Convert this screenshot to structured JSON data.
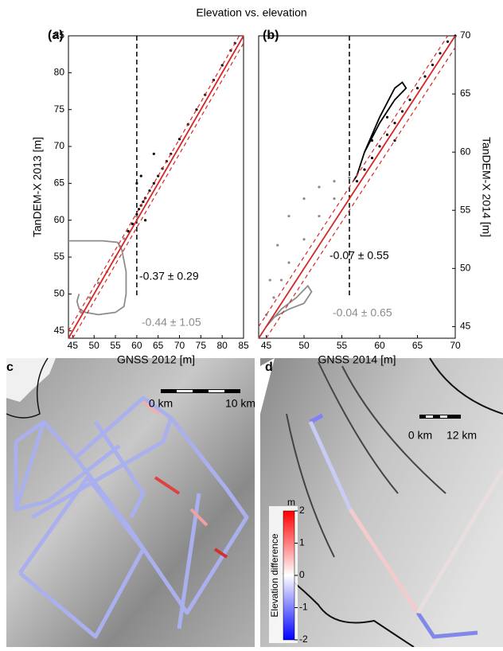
{
  "title": "Elevation vs. elevation",
  "chart_data": [
    {
      "type": "scatter",
      "panel": "(a)",
      "x_label": "GNSS 2012 [m]",
      "y_label": "TanDEM-X 2013 [m]",
      "yaxis_side": "left",
      "xlim": [
        44,
        85
      ],
      "ylim": [
        44,
        85
      ],
      "xticks": [
        45,
        50,
        55,
        60,
        65,
        70,
        75,
        80,
        85
      ],
      "yticks": [
        45,
        50,
        55,
        60,
        65,
        70,
        75,
        80,
        85
      ],
      "vline": 60,
      "annotations": [
        "-0.37 ± 0.29",
        "-0.44 ± 1.05"
      ],
      "series": [
        {
          "style": "points",
          "color": "#8c8c8c",
          "x": [
            47,
            49,
            51,
            53,
            55,
            56,
            57,
            58,
            59,
            60
          ],
          "values": [
            47.5,
            49.5,
            51.5,
            53,
            55,
            56.5,
            57.5,
            58.5,
            59.5,
            60.5
          ]
        },
        {
          "style": "line",
          "color": "#8c8c8c",
          "x": [
            44,
            52,
            55.5,
            56.5,
            57.5,
            57.5,
            57,
            55,
            51,
            48,
            46.5,
            46,
            46.5
          ],
          "values": [
            57.2,
            57.2,
            57,
            56,
            53,
            50,
            48.3,
            47.5,
            47.2,
            47.5,
            48,
            49,
            50
          ]
        },
        {
          "style": "points",
          "color": "#000000",
          "x": [
            58,
            59,
            60,
            60.5,
            61,
            61.5,
            62,
            63,
            64,
            65,
            66,
            67,
            68,
            70,
            72,
            74,
            76,
            78,
            80,
            82,
            83,
            60,
            61,
            62,
            64
          ],
          "values": [
            58.5,
            59.5,
            60.8,
            61.5,
            62,
            62.5,
            63,
            64,
            65,
            66,
            67,
            68,
            69,
            71,
            73,
            75,
            77,
            79,
            81,
            83,
            84,
            65,
            66,
            60,
            69
          ]
        },
        {
          "style": "line",
          "color": "#d62728",
          "x": [
            44,
            85
          ],
          "values": [
            44,
            85
          ]
        },
        {
          "style": "dashed",
          "color": "#d62728",
          "x": [
            44,
            84
          ],
          "values": [
            45,
            85
          ]
        },
        {
          "style": "dashed",
          "color": "#d62728",
          "x": [
            45,
            85
          ],
          "values": [
            44,
            84
          ]
        }
      ]
    },
    {
      "type": "scatter",
      "panel": "(b)",
      "x_label": "GNSS 2014 [m]",
      "y_label": "TanDEM-X 2014 [m]",
      "yaxis_side": "right",
      "xlim": [
        44,
        70
      ],
      "ylim": [
        44,
        70
      ],
      "xticks": [
        45,
        50,
        55,
        60,
        65,
        70
      ],
      "yticks": [
        45,
        50,
        55,
        60,
        65,
        70
      ],
      "vline": 56,
      "annotations": [
        "-0.07 ± 0.55",
        "-0.04 ± 0.65"
      ],
      "series": [
        {
          "style": "points",
          "color": "#8c8c8c",
          "x": [
            45,
            45.5,
            46.5,
            48,
            50,
            52,
            54,
            56,
            46,
            47,
            48,
            50,
            52,
            54
          ],
          "values": [
            46,
            49,
            52,
            54.5,
            56,
            57,
            57.5,
            57.8,
            47.5,
            49,
            50.5,
            52.5,
            54.5,
            56
          ]
        },
        {
          "style": "line",
          "color": "#8c8c8c",
          "x": [
            45,
            47,
            49,
            50.5,
            51,
            50,
            48,
            46,
            45
          ],
          "values": [
            45,
            46.5,
            47.5,
            48.5,
            48,
            47,
            46.5,
            45.8,
            45
          ]
        },
        {
          "style": "line",
          "color": "#000000",
          "x": [
            56.5,
            57,
            58,
            60,
            62,
            63.5,
            63,
            62,
            60,
            58,
            57,
            56.5
          ],
          "values": [
            57.5,
            58,
            60,
            62.5,
            64.5,
            65.5,
            66,
            65.5,
            63,
            60,
            58,
            57.5
          ]
        },
        {
          "style": "points",
          "color": "#000000",
          "x": [
            57,
            58,
            59,
            60,
            61,
            62,
            63,
            64,
            65,
            66,
            67,
            68,
            69,
            70,
            59,
            61,
            62
          ],
          "values": [
            57.5,
            58.5,
            59.5,
            60.5,
            61.5,
            62.5,
            63.5,
            64.5,
            65.5,
            66.5,
            67.5,
            68.5,
            69.5,
            70,
            61,
            63,
            61
          ]
        },
        {
          "style": "line",
          "color": "#d62728",
          "x": [
            44,
            70
          ],
          "values": [
            44,
            70
          ]
        },
        {
          "style": "dashed",
          "color": "#d62728",
          "x": [
            44,
            69
          ],
          "values": [
            45,
            70
          ]
        },
        {
          "style": "dashed",
          "color": "#d62728",
          "x": [
            45,
            70
          ],
          "values": [
            44,
            69
          ]
        }
      ]
    }
  ],
  "maps": [
    {
      "label": "c",
      "scale_labels": [
        "0 km",
        "10 km"
      ]
    },
    {
      "label": "d",
      "scale_labels": [
        "0 km",
        "12 km"
      ],
      "colorbar": {
        "unit": "m",
        "label": "Elevation difference",
        "lim": [
          -2,
          2
        ],
        "ticks": [
          2,
          1,
          0,
          -1,
          -2
        ]
      }
    }
  ]
}
